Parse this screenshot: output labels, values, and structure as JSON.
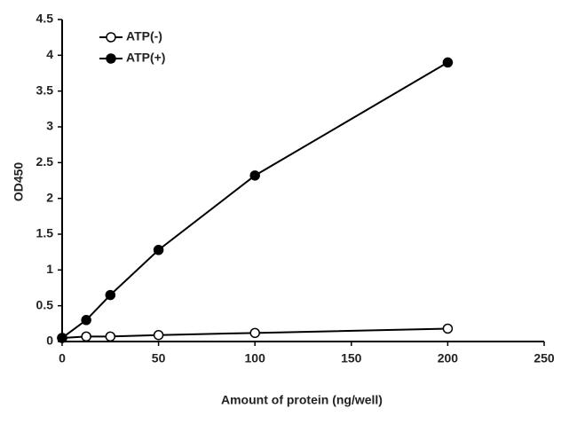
{
  "chart_data": {
    "type": "line",
    "xlabel": "Amount of protein (ng/well)",
    "ylabel": "OD450",
    "x": [
      0,
      12.5,
      25,
      50,
      100,
      200
    ],
    "series": [
      {
        "name": "ATP(-)",
        "color": "#000000",
        "markerfacecolor": "#ffffff",
        "values": [
          0.05,
          0.07,
          0.07,
          0.09,
          0.12,
          0.18
        ]
      },
      {
        "name": "ATP(+)",
        "color": "#000000",
        "markerfacecolor": "#000000",
        "values": [
          0.05,
          0.3,
          0.65,
          1.28,
          2.32,
          3.9
        ]
      }
    ],
    "xlim": [
      0,
      250
    ],
    "xticks": [
      0,
      50,
      100,
      150,
      200,
      250
    ],
    "ylim": [
      0,
      4.5
    ],
    "yticks": [
      0,
      0.5,
      1,
      1.5,
      2,
      2.5,
      3,
      3.5,
      4,
      4.5
    ],
    "grid": false,
    "legend": "upper left"
  }
}
